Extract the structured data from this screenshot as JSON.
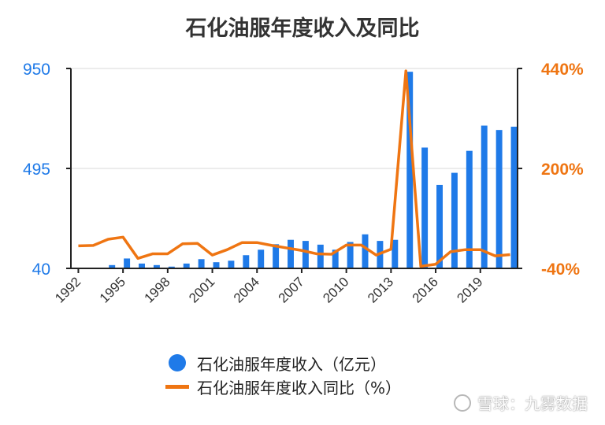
{
  "title": "石化油服年度收入及同比",
  "colors": {
    "bar": "#1f7ae8",
    "line": "#ef7512",
    "left_axis": "#1f7ae8",
    "right_axis": "#ef7512"
  },
  "legend": {
    "bar_label": "石化油服年度收入（亿元）",
    "line_label": "石化油服年度收入同比（%）"
  },
  "watermark": "雪球：九雾数据",
  "chart_data": {
    "type": "bar+line",
    "x": [
      1992,
      1993,
      1994,
      1995,
      1996,
      1997,
      1998,
      1999,
      2000,
      2001,
      2002,
      2003,
      2004,
      2005,
      2006,
      2007,
      2008,
      2009,
      2010,
      2011,
      2012,
      2013,
      2014,
      2015,
      2016,
      2017,
      2018,
      2019,
      2020,
      2021
    ],
    "x_tick_labels": [
      "1992",
      "1995",
      "1998",
      "2001",
      "2004",
      "2007",
      "2010",
      "2013",
      "2016",
      "2019"
    ],
    "series": [
      {
        "name": "石化油服年度收入（亿元）",
        "axis": "left",
        "type": "bar",
        "values": [
          40,
          42,
          55,
          85,
          62,
          55,
          48,
          62,
          82,
          68,
          75,
          100,
          125,
          150,
          170,
          165,
          148,
          125,
          160,
          195,
          165,
          170,
          935,
          590,
          420,
          475,
          575,
          690,
          670,
          685
        ]
      },
      {
        "name": "石化油服年度收入同比（%）",
        "axis": "right",
        "type": "line",
        "values": [
          14,
          15,
          30,
          35,
          -16,
          -5,
          -5,
          19,
          20,
          -8,
          5,
          22,
          22,
          15,
          9,
          3,
          -5,
          -6,
          16,
          16,
          -8,
          6,
          434,
          -35,
          -30,
          0,
          5,
          5,
          -10,
          -7
        ]
      }
    ],
    "left_axis": {
      "ticks": [
        "950",
        "495",
        "40"
      ],
      "ylim": [
        40,
        950
      ]
    },
    "right_axis": {
      "ticks": [
        "440%",
        "200%",
        "-40%"
      ],
      "ylim": [
        -40,
        440
      ]
    },
    "grid": true
  }
}
